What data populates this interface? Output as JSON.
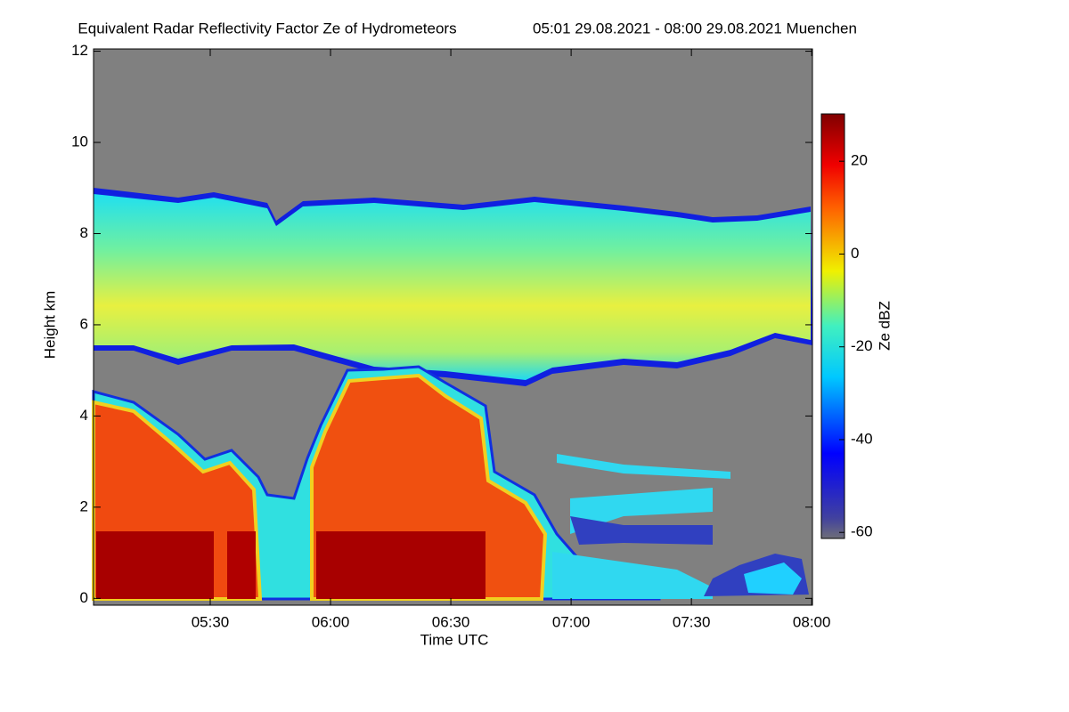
{
  "chart_data": {
    "type": "heatmap",
    "title": "Equivalent Radar Reflectivity Factor Ze of Hydrometeors",
    "subtitle": "05:01 29.08.2021 - 08:00 29.08.2021 Muenchen",
    "xlabel": "Time UTC",
    "ylabel": "Height km",
    "xlim": [
      5.015,
      8.003
    ],
    "xticks": [
      {
        "value": 5.5,
        "label": "05:30"
      },
      {
        "value": 6,
        "label": "06:00"
      },
      {
        "value": 6.5,
        "label": "06:30"
      },
      {
        "value": 7,
        "label": "07:00"
      },
      {
        "value": 7.5,
        "label": "07:30"
      },
      {
        "value": 8,
        "label": "08:00"
      }
    ],
    "ylim": [
      -0.15,
      12.05
    ],
    "yticks": [
      0,
      2,
      4,
      6,
      8,
      10,
      12
    ],
    "colorbar": {
      "label": "Ze dBZ",
      "lim": [
        -61.3,
        30.2
      ],
      "ticks": [
        20,
        0,
        -20,
        -40,
        -60
      ]
    }
  }
}
